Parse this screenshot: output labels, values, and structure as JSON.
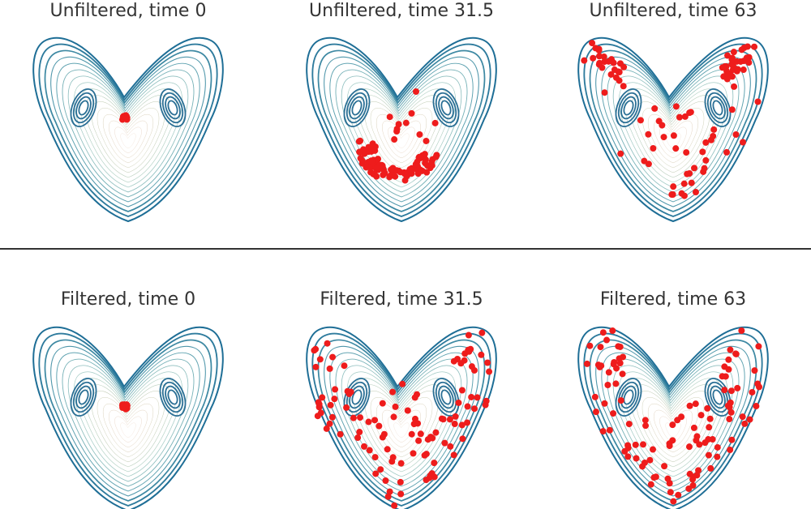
{
  "panels": [
    {
      "title": "Unfiltered, time 0"
    },
    {
      "title": "Unfiltered, time 31.5"
    },
    {
      "title": "Unfiltered, time 63"
    },
    {
      "title": "Filtered, time 0"
    },
    {
      "title": "Filtered, time 31.5"
    },
    {
      "title": "Filtered, time 63"
    }
  ]
}
